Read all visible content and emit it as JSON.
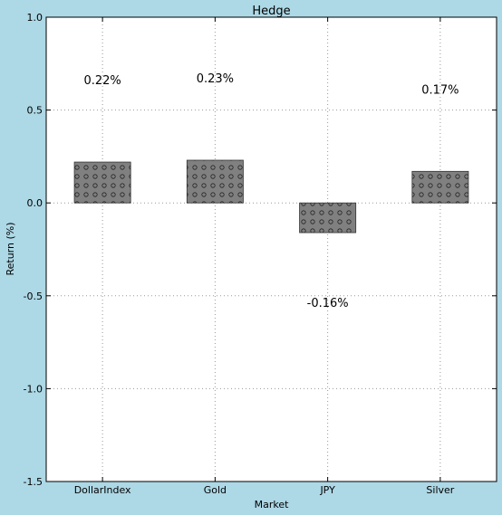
{
  "chart_data": {
    "type": "bar",
    "title": "Hedge",
    "xlabel": "Market",
    "ylabel": "Return (%)",
    "categories": [
      "DollarIndex",
      "Gold",
      "JPY",
      "Silver"
    ],
    "values": [
      0.22,
      0.23,
      -0.16,
      0.17
    ],
    "data_labels": [
      "0.22%",
      "0.23%",
      "-0.16%",
      "0.17%"
    ],
    "ylim": [
      -1.5,
      1.0
    ],
    "yticks": [
      "1.0",
      "0.5",
      "0.0",
      "-0.5",
      "-1.0",
      "-1.5"
    ],
    "grid": true,
    "bar_color": "#808080",
    "background": "#add8e6",
    "plot_background": "#ffffff"
  }
}
